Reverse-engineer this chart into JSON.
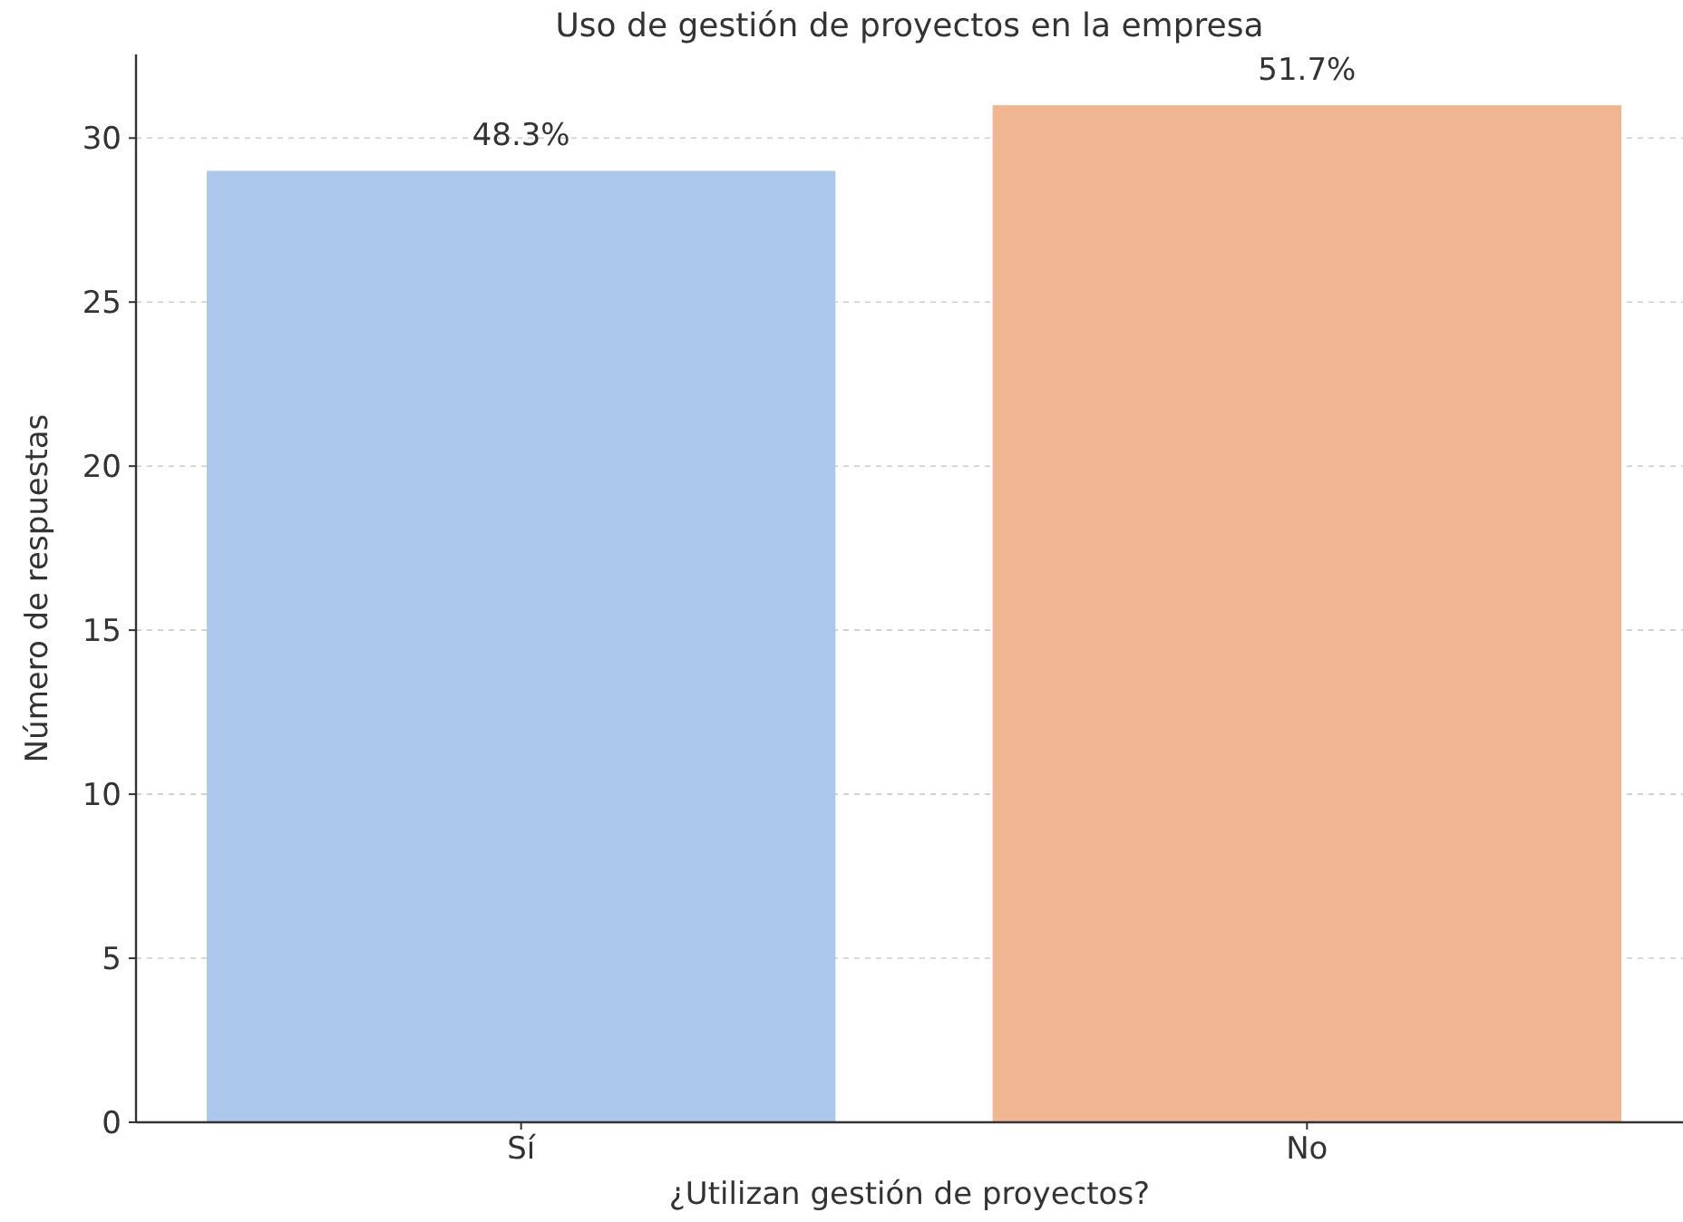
{
  "chart_data": {
    "type": "bar",
    "title": "Uso de gestión de proyectos en la empresa",
    "xlabel": "¿Utilizan gestión de proyectos?",
    "ylabel": "Número de respuestas",
    "categories": [
      "Sí",
      "No"
    ],
    "values": [
      29,
      31
    ],
    "colors": [
      "#abc8eb",
      "#f0b692"
    ],
    "annotations": [
      {
        "text": "48.3%",
        "x": "Sí",
        "y": 29
      },
      {
        "text": "51.7%",
        "x": "No",
        "y": 31
      }
    ],
    "ylim": [
      0,
      32.55
    ],
    "yticks": [
      0,
      5,
      10,
      15,
      20,
      25,
      30
    ],
    "grid": "y"
  }
}
